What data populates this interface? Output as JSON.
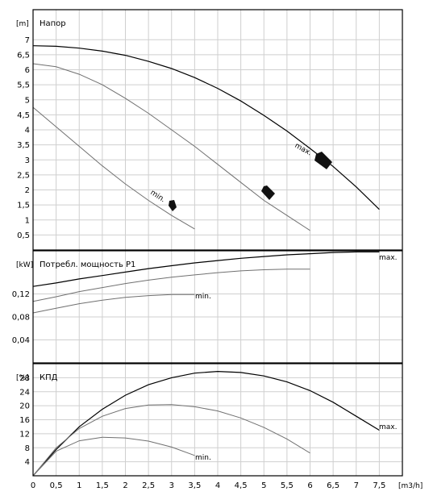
{
  "chart_data": [
    {
      "type": "line",
      "title": "Напор",
      "ylabel": "[m]",
      "xlim": [
        0,
        8
      ],
      "ylim": [
        0,
        8
      ],
      "yticks": [
        "0,5",
        "1",
        "1,5",
        "2",
        "2,5",
        "3",
        "3,5",
        "4",
        "4,5",
        "5",
        "5,5",
        "6",
        "6,5",
        "7"
      ],
      "grid": true,
      "series": [
        {
          "name": "max.",
          "x": [
            0,
            0.5,
            1,
            1.5,
            2,
            2.5,
            3,
            3.5,
            4,
            4.5,
            5,
            5.5,
            6,
            6.5,
            7,
            7.5
          ],
          "y": [
            6.8,
            6.78,
            6.72,
            6.62,
            6.48,
            6.28,
            6.04,
            5.74,
            5.38,
            4.96,
            4.48,
            3.96,
            3.38,
            2.78,
            2.1,
            1.35
          ]
        },
        {
          "name": "",
          "x": [
            0,
            0.5,
            1,
            1.5,
            2,
            2.5,
            3,
            3.5,
            4,
            4.5,
            5,
            5.5,
            6
          ],
          "y": [
            6.2,
            6.1,
            5.85,
            5.5,
            5.05,
            4.55,
            4.0,
            3.45,
            2.85,
            2.25,
            1.65,
            1.15,
            0.65
          ]
        },
        {
          "name": "min.",
          "x": [
            0,
            0.5,
            1,
            1.5,
            2,
            2.5,
            3,
            3.5
          ],
          "y": [
            4.75,
            4.1,
            3.45,
            2.8,
            2.2,
            1.65,
            1.15,
            0.7
          ]
        }
      ],
      "annotations": [
        "max.",
        "min."
      ]
    },
    {
      "type": "line",
      "title": "Потребл. мощность P1",
      "ylabel": "[kW]",
      "xlim": [
        0,
        8
      ],
      "ylim": [
        0,
        0.195
      ],
      "yticks": [
        "0,04",
        "0,08",
        "0,12"
      ],
      "grid": true,
      "series": [
        {
          "name": "max.",
          "x": [
            0,
            0.5,
            1,
            1.5,
            2,
            2.5,
            3,
            3.5,
            4,
            4.5,
            5,
            5.5,
            6,
            6.5,
            7,
            7.5
          ],
          "y": [
            0.133,
            0.139,
            0.146,
            0.152,
            0.158,
            0.164,
            0.169,
            0.174,
            0.178,
            0.182,
            0.185,
            0.188,
            0.19,
            0.192,
            0.193,
            0.193
          ]
        },
        {
          "name": "",
          "x": [
            0,
            0.5,
            1,
            1.5,
            2,
            2.5,
            3,
            3.5,
            4,
            4.5,
            5,
            5.5,
            6
          ],
          "y": [
            0.107,
            0.115,
            0.124,
            0.131,
            0.138,
            0.144,
            0.149,
            0.153,
            0.157,
            0.16,
            0.162,
            0.163,
            0.163
          ]
        },
        {
          "name": "min.",
          "x": [
            0,
            0.5,
            1,
            1.5,
            2,
            2.5,
            3,
            3.5
          ],
          "y": [
            0.087,
            0.095,
            0.103,
            0.109,
            0.114,
            0.117,
            0.119,
            0.119
          ]
        }
      ],
      "annotations": [
        "max.",
        "min."
      ]
    },
    {
      "type": "line",
      "title": "КПД",
      "ylabel": "[%]",
      "xlabel": "[m3/h]",
      "xlim": [
        0,
        8
      ],
      "ylim": [
        0,
        32
      ],
      "xticks": [
        "0",
        "0,5",
        "1",
        "1,5",
        "2",
        "2,5",
        "3",
        "3,5",
        "4",
        "4,5",
        "5",
        "5,5",
        "6",
        "6,5",
        "7",
        "7,5"
      ],
      "yticks": [
        "4",
        "8",
        "12",
        "16",
        "20",
        "24",
        "28"
      ],
      "grid": true,
      "series": [
        {
          "name": "max.",
          "x": [
            0,
            0.5,
            1,
            1.5,
            2,
            2.5,
            3,
            3.5,
            4,
            4.5,
            5,
            5.5,
            6,
            6.5,
            7,
            7.5
          ],
          "y": [
            0,
            7.5,
            14,
            19,
            23,
            26,
            28,
            29.3,
            29.8,
            29.5,
            28.5,
            26.8,
            24.3,
            21,
            17,
            13
          ]
        },
        {
          "name": "",
          "x": [
            0,
            0.5,
            1,
            1.5,
            2,
            2.5,
            3,
            3.5,
            4,
            4.5,
            5,
            5.5,
            6
          ],
          "y": [
            0,
            8,
            13.5,
            17,
            19.2,
            20.2,
            20.3,
            19.7,
            18.5,
            16.5,
            13.8,
            10.5,
            6.5
          ]
        },
        {
          "name": "min.",
          "x": [
            0,
            0.5,
            1,
            1.5,
            2,
            2.5,
            3,
            3.5
          ],
          "y": [
            0,
            7,
            10,
            11,
            10.8,
            9.9,
            8.2,
            5.8
          ]
        }
      ],
      "annotations": [
        "max.",
        "min."
      ]
    }
  ]
}
